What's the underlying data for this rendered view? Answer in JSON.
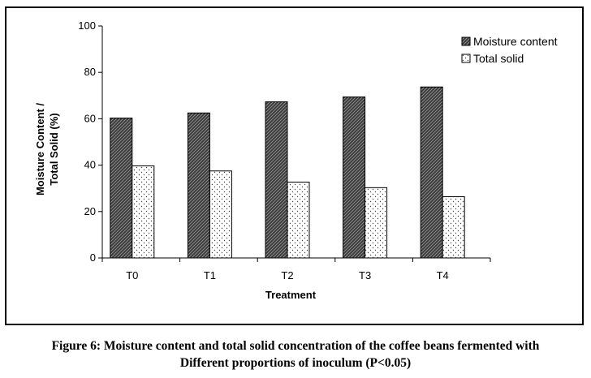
{
  "caption": {
    "line1": "Figure 6: Moisture content and total solid concentration of the coffee beans fermented with",
    "line2": "Different proportions of inoculum (P<0.05)"
  },
  "chart_data": {
    "type": "bar",
    "title": "",
    "xlabel": "Treatment",
    "ylabel_line1": "Moisture Content /",
    "ylabel_line2": "Total Solid (%)",
    "ylim": [
      0,
      100
    ],
    "yticks": [
      "0",
      "20",
      "40",
      "60",
      "80",
      "100"
    ],
    "categories": [
      "T0",
      "T1",
      "T2",
      "T3",
      "T4"
    ],
    "series": [
      {
        "name": "Moisture content",
        "values": [
          60.3,
          62.5,
          67.3,
          69.4,
          73.7
        ],
        "pattern": "dark-hatch"
      },
      {
        "name": "Total solid",
        "values": [
          39.7,
          37.5,
          32.7,
          30.3,
          26.4
        ],
        "pattern": "light-dots"
      }
    ],
    "legend_position": "top-right",
    "grid": false
  }
}
